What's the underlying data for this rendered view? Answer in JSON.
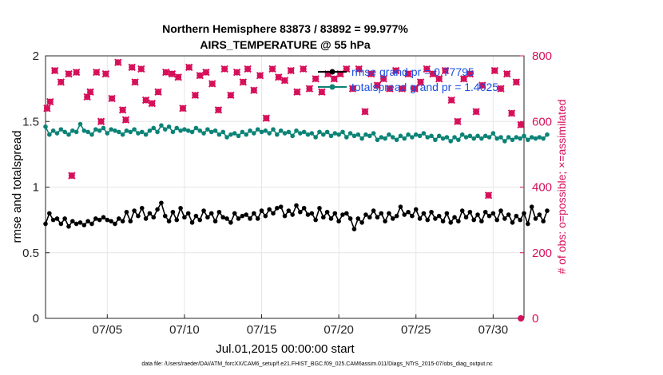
{
  "chart_data": {
    "type": "line",
    "title_line1": "Northern Hemisphere 83873 / 83892 = 99.977%",
    "title_line2": "AIRS_TEMPERATURE @ 55 hPa",
    "xlabel": "Jul.01,2015 00:00:00 start",
    "ylabel_left": "rmse and totalspread",
    "ylabel_right": "# of obs: o=possible; ×=assimilated",
    "xlim": [
      1,
      32
    ],
    "ylim_left": [
      0,
      2
    ],
    "ylim_right": [
      0,
      800
    ],
    "x_ticks": [
      {
        "x": 5,
        "label": "07/05"
      },
      {
        "x": 10,
        "label": "07/10"
      },
      {
        "x": 15,
        "label": "07/15"
      },
      {
        "x": 20,
        "label": "07/20"
      },
      {
        "x": 25,
        "label": "07/25"
      },
      {
        "x": 30,
        "label": "07/30"
      }
    ],
    "y_ticks_left": [
      {
        "v": 0,
        "label": "0"
      },
      {
        "v": 0.5,
        "label": "0.5"
      },
      {
        "v": 1,
        "label": "1"
      },
      {
        "v": 1.5,
        "label": "1.5"
      },
      {
        "v": 2,
        "label": "2"
      }
    ],
    "y_ticks_right": [
      {
        "v": 0,
        "label": "0"
      },
      {
        "v": 200,
        "label": "200"
      },
      {
        "v": 400,
        "label": "400"
      },
      {
        "v": 600,
        "label": "600"
      },
      {
        "v": 800,
        "label": "800"
      }
    ],
    "grid": true,
    "legend_position": "top-right",
    "series": [
      {
        "name": "rmse grand pr = 0.77795",
        "axis": "left",
        "color": "#000000",
        "marker": "circle",
        "x_start": 1.0,
        "x_step": 0.25,
        "values": [
          0.72,
          0.8,
          0.75,
          0.76,
          0.72,
          0.76,
          0.7,
          0.74,
          0.72,
          0.73,
          0.71,
          0.74,
          0.72,
          0.76,
          0.75,
          0.77,
          0.75,
          0.74,
          0.72,
          0.76,
          0.74,
          0.81,
          0.74,
          0.82,
          0.78,
          0.84,
          0.76,
          0.8,
          0.77,
          0.83,
          0.88,
          0.78,
          0.74,
          0.81,
          0.75,
          0.84,
          0.77,
          0.8,
          0.73,
          0.78,
          0.75,
          0.82,
          0.77,
          0.8,
          0.74,
          0.81,
          0.77,
          0.76,
          0.73,
          0.8,
          0.76,
          0.78,
          0.79,
          0.76,
          0.8,
          0.76,
          0.82,
          0.78,
          0.83,
          0.8,
          0.84,
          0.85,
          0.78,
          0.82,
          0.79,
          0.86,
          0.81,
          0.84,
          0.79,
          0.8,
          0.75,
          0.84,
          0.77,
          0.81,
          0.76,
          0.8,
          0.74,
          0.79,
          0.8,
          0.76,
          0.68,
          0.76,
          0.73,
          0.79,
          0.77,
          0.82,
          0.77,
          0.8,
          0.74,
          0.8,
          0.76,
          0.78,
          0.85,
          0.79,
          0.81,
          0.78,
          0.83,
          0.76,
          0.8,
          0.75,
          0.81,
          0.76,
          0.78,
          0.74,
          0.8,
          0.73,
          0.77,
          0.74,
          0.82,
          0.77,
          0.81,
          0.75,
          0.79,
          0.74,
          0.81,
          0.78,
          0.8,
          0.75,
          0.82,
          0.76,
          0.79,
          0.73,
          0.78,
          0.75,
          0.8,
          0.72,
          0.85,
          0.76,
          0.79,
          0.74,
          0.82
        ]
      },
      {
        "name": "totalspread grand pr = 1.4025",
        "axis": "left",
        "color": "#0b8376",
        "marker": "circle",
        "x_start": 1.0,
        "x_step": 0.25,
        "values": [
          1.46,
          1.4,
          1.43,
          1.41,
          1.44,
          1.42,
          1.4,
          1.43,
          1.42,
          1.48,
          1.43,
          1.42,
          1.4,
          1.44,
          1.43,
          1.45,
          1.41,
          1.44,
          1.43,
          1.42,
          1.4,
          1.43,
          1.42,
          1.44,
          1.41,
          1.42,
          1.4,
          1.43,
          1.45,
          1.42,
          1.47,
          1.44,
          1.46,
          1.42,
          1.45,
          1.43,
          1.44,
          1.43,
          1.42,
          1.45,
          1.43,
          1.41,
          1.44,
          1.42,
          1.43,
          1.4,
          1.42,
          1.38,
          1.4,
          1.41,
          1.39,
          1.42,
          1.4,
          1.43,
          1.41,
          1.44,
          1.42,
          1.43,
          1.41,
          1.44,
          1.4,
          1.43,
          1.41,
          1.42,
          1.39,
          1.43,
          1.41,
          1.42,
          1.4,
          1.41,
          1.38,
          1.42,
          1.4,
          1.42,
          1.39,
          1.41,
          1.4,
          1.42,
          1.38,
          1.41,
          1.39,
          1.4,
          1.37,
          1.4,
          1.39,
          1.41,
          1.36,
          1.38,
          1.37,
          1.4,
          1.38,
          1.36,
          1.39,
          1.37,
          1.4,
          1.38,
          1.4,
          1.39,
          1.41,
          1.38,
          1.39,
          1.36,
          1.39,
          1.37,
          1.38,
          1.35,
          1.38,
          1.36,
          1.4,
          1.38,
          1.39,
          1.37,
          1.39,
          1.37,
          1.39,
          1.38,
          1.41,
          1.37,
          1.38,
          1.35,
          1.38,
          1.36,
          1.38,
          1.37,
          1.39,
          1.36,
          1.38,
          1.37,
          1.38,
          1.37,
          1.4
        ]
      }
    ],
    "obs_possible": {
      "axis": "right",
      "color": "#d6105a",
      "marker": "circle",
      "x": [
        1.1,
        1.3,
        1.6,
        2.0,
        2.5,
        2.7,
        3.0,
        3.7,
        3.9,
        4.3,
        4.6,
        4.9,
        5.3,
        5.7,
        6.0,
        6.2,
        6.6,
        6.8,
        7.2,
        7.5,
        7.9,
        8.3,
        8.8,
        9.2,
        9.6,
        9.9,
        10.3,
        10.7,
        11.0,
        11.4,
        11.8,
        12.2,
        12.6,
        13.0,
        13.4,
        13.8,
        14.1,
        14.5,
        14.9,
        15.3,
        15.7,
        16.1,
        16.5,
        16.9,
        17.3,
        17.7,
        18.1,
        18.5,
        18.9,
        19.3,
        19.7,
        20.1,
        20.5,
        20.9,
        21.3,
        21.7,
        22.1,
        22.5,
        22.9,
        23.3,
        23.7,
        24.1,
        24.5,
        24.9,
        25.3,
        25.7,
        26.1,
        26.5,
        26.9,
        27.3,
        27.7,
        28.1,
        28.5,
        28.9,
        29.3,
        29.7,
        30.1,
        30.5,
        30.9,
        31.2,
        31.5,
        31.8
      ],
      "values": [
        640,
        660,
        755,
        720,
        745,
        435,
        750,
        675,
        690,
        750,
        600,
        745,
        670,
        780,
        635,
        605,
        765,
        720,
        760,
        665,
        655,
        690,
        750,
        745,
        735,
        640,
        765,
        680,
        740,
        750,
        715,
        635,
        760,
        680,
        750,
        720,
        760,
        695,
        740,
        610,
        760,
        735,
        725,
        755,
        690,
        760,
        700,
        730,
        690,
        745,
        730,
        745,
        760,
        700,
        760,
        630,
        745,
        710,
        730,
        700,
        755,
        700,
        745,
        700,
        720,
        760,
        745,
        730,
        755,
        665,
        600,
        730,
        745,
        630,
        710,
        375,
        755,
        700,
        745,
        625,
        720,
        590
      ]
    },
    "obs_assimilated": {
      "axis": "right",
      "color": "#d6105a",
      "marker": "x",
      "x": [
        1.1,
        1.3,
        1.6,
        2.0,
        2.5,
        2.7,
        3.0,
        3.7,
        3.9,
        4.3,
        4.6,
        4.9,
        5.3,
        5.7,
        6.0,
        6.2,
        6.6,
        6.8,
        7.2,
        7.5,
        7.9,
        8.3,
        8.8,
        9.2,
        9.6,
        9.9,
        10.3,
        10.7,
        11.0,
        11.4,
        11.8,
        12.2,
        12.6,
        13.0,
        13.4,
        13.8,
        14.1,
        14.5,
        14.9,
        15.3,
        15.7,
        16.1,
        16.5,
        16.9,
        17.3,
        17.7,
        18.1,
        18.5,
        18.9,
        19.3,
        19.7,
        20.1,
        20.5,
        20.9,
        21.3,
        21.7,
        22.1,
        22.5,
        22.9,
        23.3,
        23.7,
        24.1,
        24.5,
        24.9,
        25.3,
        25.7,
        26.1,
        26.5,
        26.9,
        27.3,
        27.7,
        28.1,
        28.5,
        28.9,
        29.3,
        29.7,
        30.1,
        30.5,
        30.9,
        31.2,
        31.5,
        31.8
      ],
      "values": [
        640,
        660,
        755,
        720,
        745,
        435,
        750,
        675,
        690,
        750,
        600,
        745,
        670,
        780,
        635,
        605,
        765,
        720,
        760,
        665,
        655,
        690,
        750,
        745,
        735,
        640,
        765,
        680,
        740,
        750,
        715,
        635,
        760,
        680,
        750,
        720,
        760,
        695,
        740,
        610,
        760,
        735,
        725,
        755,
        690,
        760,
        700,
        730,
        690,
        745,
        730,
        745,
        760,
        700,
        760,
        630,
        745,
        710,
        730,
        700,
        755,
        700,
        745,
        700,
        720,
        760,
        745,
        730,
        755,
        665,
        600,
        730,
        745,
        630,
        710,
        375,
        755,
        700,
        745,
        625,
        720,
        590
      ]
    },
    "zero_marker": {
      "x": 31.8,
      "value": 0
    }
  },
  "footnote": "data file: /Users/raeder/DAI/ATM_forcXX/CAM6_setup/f.e21.FHIST_BGC.f09_025.CAM6assim.011/Diags_NTrS_2015-07/obs_diag_output.nc"
}
